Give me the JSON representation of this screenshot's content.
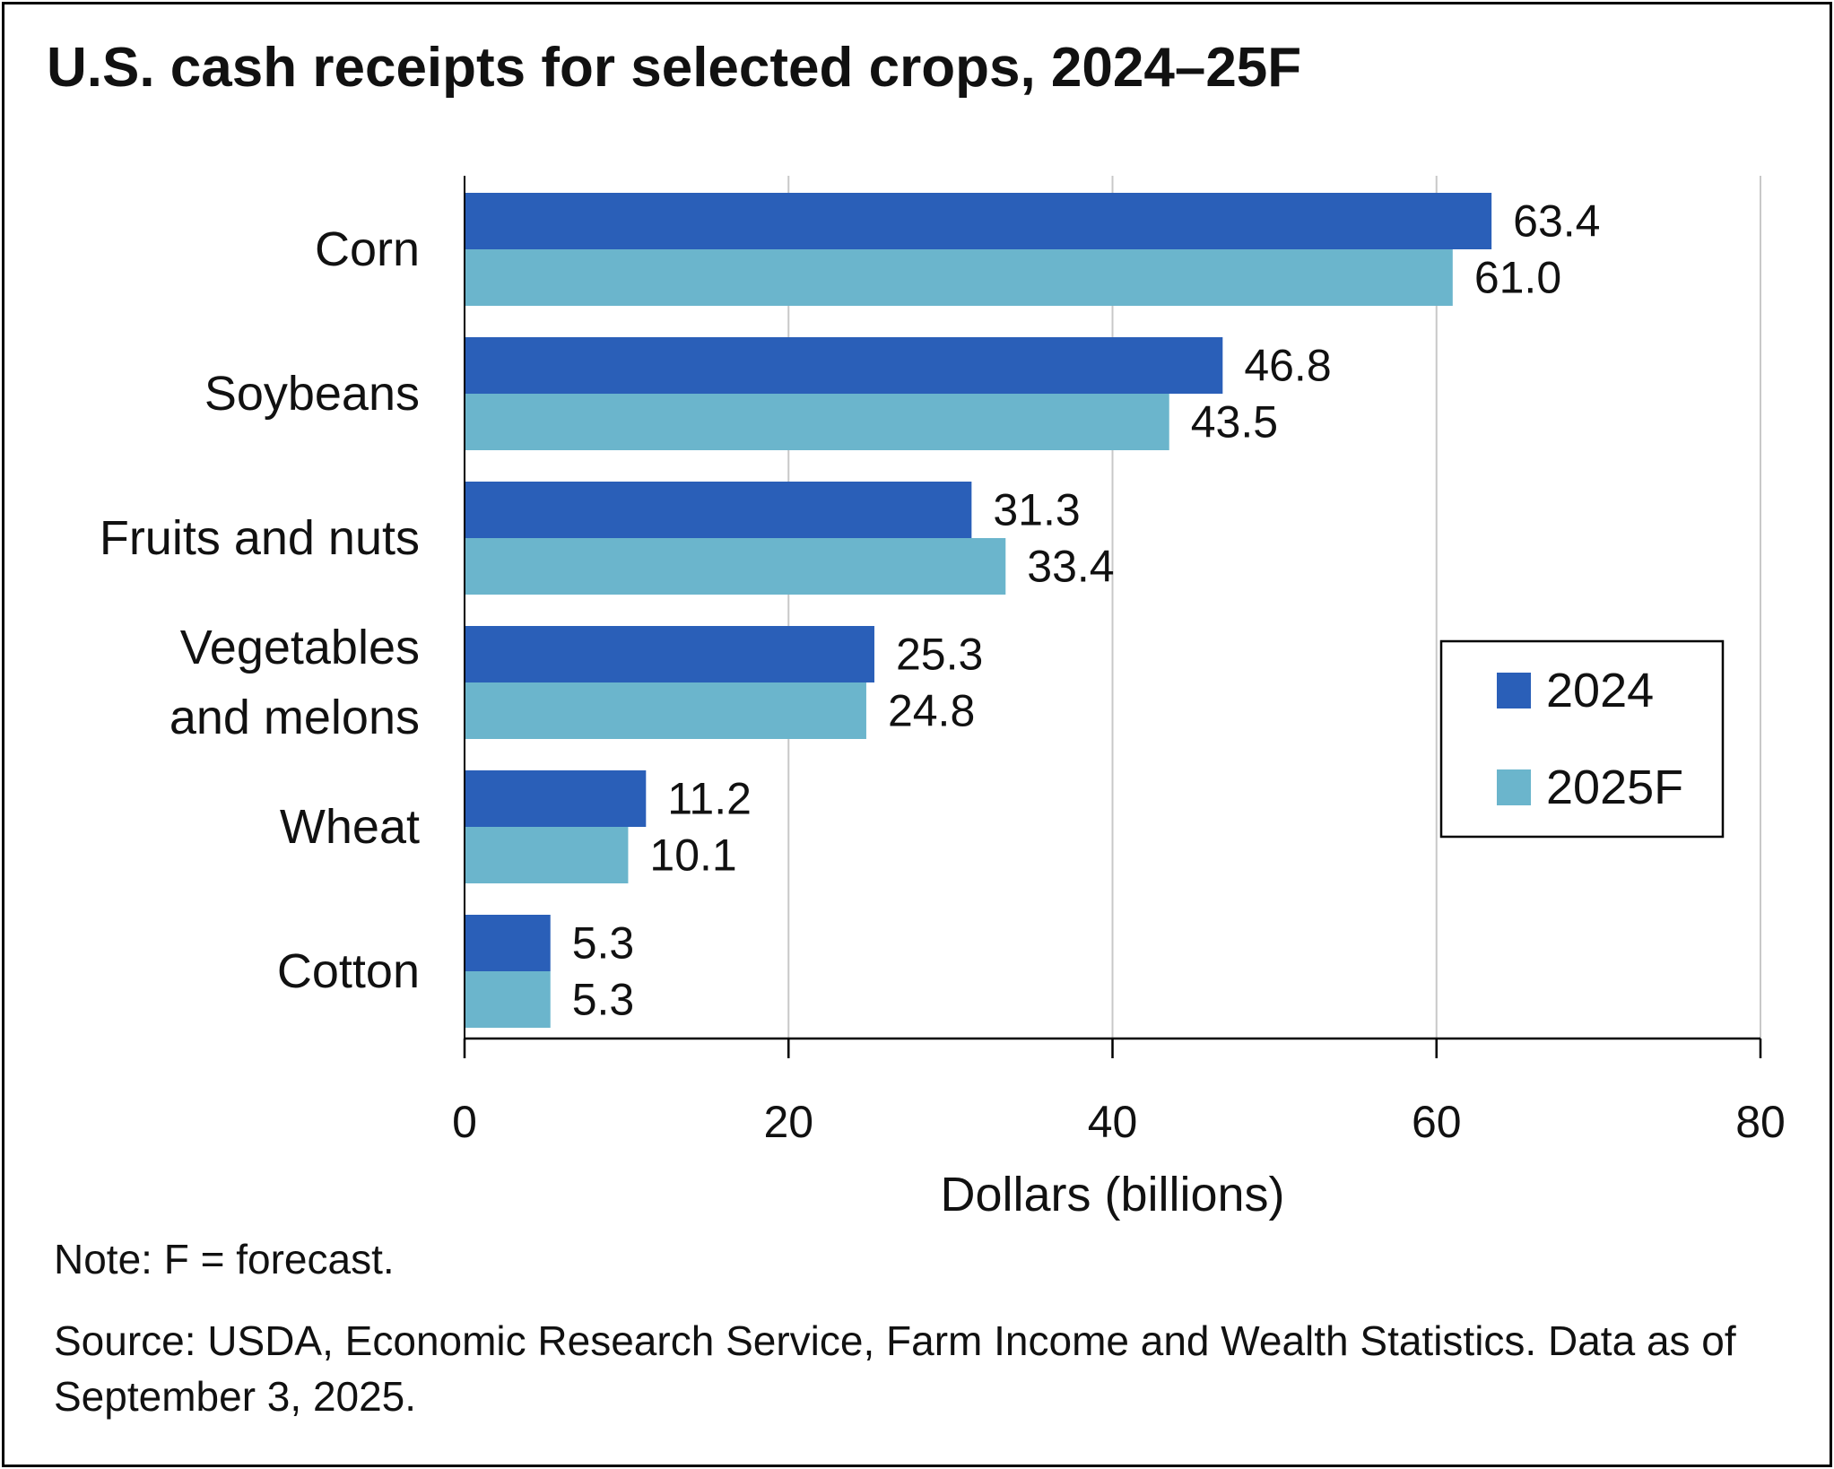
{
  "title": "U.S. cash receipts for selected crops, 2024–25F",
  "note": "Note: F = forecast.",
  "source": "Source: USDA, Economic Research Service, Farm Income and Wealth Statistics. Data as of September 3, 2025.",
  "colors": {
    "series_2024": "#2a5fb8",
    "series_2025F": "#6bb5cc",
    "grid": "#c8c8c8",
    "axis": "#000000"
  },
  "chart_data": {
    "type": "bar",
    "orientation": "horizontal",
    "categories": [
      [
        "Corn"
      ],
      [
        "Soybeans"
      ],
      [
        "Fruits and nuts"
      ],
      [
        "Vegetables",
        "and melons"
      ],
      [
        "Wheat"
      ],
      [
        "Cotton"
      ]
    ],
    "series": [
      {
        "name": "2024",
        "values": [
          63.4,
          46.8,
          31.3,
          25.3,
          11.2,
          5.3
        ],
        "labels": [
          "63.4",
          "46.8",
          "31.3",
          "25.3",
          "11.2",
          "5.3"
        ]
      },
      {
        "name": "2025F",
        "values": [
          61.0,
          43.5,
          33.4,
          24.8,
          10.1,
          5.3
        ],
        "labels": [
          "61.0",
          "43.5",
          "33.4",
          "24.8",
          "10.1",
          "5.3"
        ]
      }
    ],
    "xlabel": "Dollars (billions)",
    "xlim": [
      0,
      80
    ],
    "xticks": [
      0,
      20,
      40,
      60,
      80
    ],
    "grid": "vertical",
    "legend_position": "right"
  }
}
